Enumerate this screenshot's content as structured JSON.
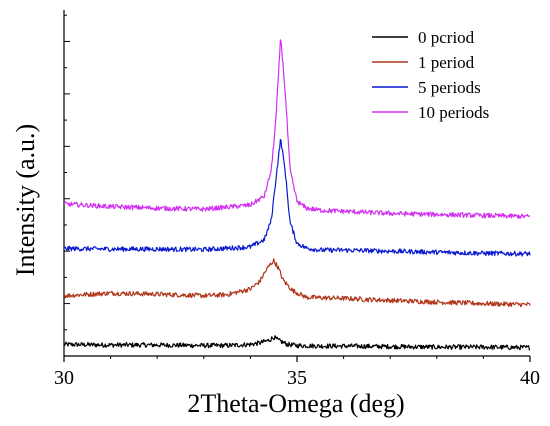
{
  "chart_data": {
    "type": "line",
    "title": "",
    "xlabel": "2Theta-Omega (deg)",
    "ylabel": "Intensity (a.u.)",
    "xlim": [
      30,
      40
    ],
    "x_ticks": [
      "30",
      "35",
      "40"
    ],
    "y_tick_labels_shown": false,
    "grid": false,
    "legend_placement": "top-right",
    "series": [
      {
        "name": "0 pcriod",
        "color": "#000000",
        "x": [
          30,
          31,
          32,
          33,
          33.5,
          34,
          34.2,
          34.4,
          34.5,
          34.6,
          34.8,
          35,
          35.5,
          36,
          37,
          38,
          39,
          40
        ],
        "y": [
          0.22,
          0.21,
          0.21,
          0.2,
          0.2,
          0.22,
          0.25,
          0.3,
          0.36,
          0.3,
          0.22,
          0.2,
          0.19,
          0.19,
          0.18,
          0.17,
          0.17,
          0.16
        ]
      },
      {
        "name": "1 period",
        "color": "#b0381c",
        "x": [
          30,
          31,
          32,
          33,
          33.5,
          34,
          34.2,
          34.3,
          34.4,
          34.5,
          34.6,
          34.7,
          34.9,
          35.2,
          36,
          37,
          38,
          39,
          40
        ],
        "y": [
          1.15,
          1.2,
          1.18,
          1.15,
          1.17,
          1.28,
          1.42,
          1.58,
          1.72,
          1.82,
          1.68,
          1.45,
          1.25,
          1.12,
          1.1,
          1.06,
          1.03,
          1.0,
          0.98
        ]
      },
      {
        "name": "5 periods",
        "color": "#0a1ad0",
        "x": [
          30,
          31,
          32,
          33,
          34,
          34.3,
          34.45,
          34.55,
          34.65,
          34.75,
          34.85,
          35.0,
          35.2,
          35.5,
          36,
          37,
          38,
          39,
          40
        ],
        "y": [
          2.05,
          2.04,
          2.04,
          2.03,
          2.08,
          2.22,
          2.6,
          3.4,
          4.15,
          3.5,
          2.55,
          2.15,
          2.06,
          2.02,
          2.02,
          2.0,
          1.98,
          1.96,
          1.95
        ]
      },
      {
        "name": "10 periods",
        "color": "#d230f0",
        "x": [
          30,
          31,
          32,
          33,
          34,
          34.3,
          34.45,
          34.55,
          34.65,
          34.75,
          34.85,
          35.0,
          35.2,
          35.5,
          36,
          37,
          38,
          39,
          40
        ],
        "y": [
          2.9,
          2.85,
          2.82,
          2.8,
          2.88,
          3.05,
          3.55,
          4.55,
          6.1,
          5.0,
          3.55,
          2.95,
          2.82,
          2.78,
          2.76,
          2.72,
          2.7,
          2.68,
          2.66
        ]
      }
    ]
  }
}
